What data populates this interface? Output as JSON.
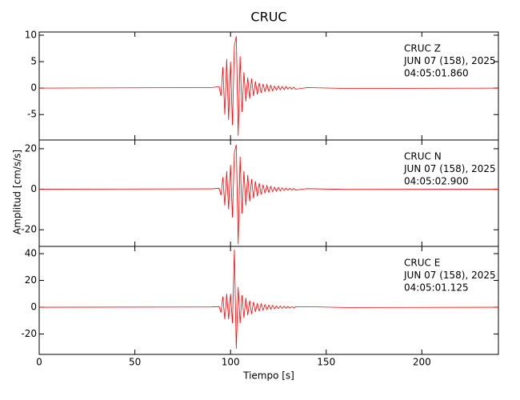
{
  "chart_data": [
    {
      "type": "line",
      "title": "CRUC",
      "annotations": [
        "CRUC   Z",
        "JUN 07 (158), 2025",
        "04:05:01.860"
      ],
      "x": [
        0,
        90,
        94,
        95,
        96,
        97,
        98,
        99,
        100,
        101,
        102,
        103,
        104,
        105,
        106,
        107,
        108,
        109,
        110,
        111,
        112,
        113,
        114,
        115,
        116,
        117,
        118,
        119,
        120,
        121,
        122,
        123,
        124,
        125,
        126,
        127,
        128,
        129,
        130,
        131,
        132,
        133,
        134,
        140,
        160,
        240
      ],
      "values": [
        0,
        0.1,
        0.3,
        -1.5,
        4,
        -5,
        5.5,
        -6,
        5,
        -7,
        8,
        9.8,
        -9,
        6,
        -4.5,
        3,
        -2.5,
        2,
        -2,
        1.8,
        -1.5,
        1.3,
        -1.2,
        1,
        -0.9,
        0.8,
        -0.7,
        0.7,
        -0.6,
        0.5,
        -0.5,
        0.4,
        -0.4,
        0.4,
        -0.3,
        0.3,
        -0.3,
        0.3,
        -0.2,
        0.2,
        -0.2,
        0.2,
        -0.2,
        0.1,
        -0.05,
        0
      ],
      "color": "#ff0000",
      "xlim": [
        0,
        240
      ],
      "xticks": [
        0,
        50,
        100,
        150,
        200
      ],
      "ylim": [
        -9.8,
        10.6
      ],
      "yticks": [
        -5,
        0,
        5,
        10
      ]
    },
    {
      "type": "line",
      "ylabel": "Amplitud [cm/s/s]",
      "annotations": [
        "CRUC   N",
        "JUN 07 (158), 2025",
        "04:05:02.900"
      ],
      "x": [
        0,
        90,
        94,
        95,
        96,
        97,
        98,
        99,
        100,
        101,
        102,
        103,
        104,
        105,
        106,
        107,
        108,
        109,
        110,
        111,
        112,
        113,
        114,
        115,
        116,
        117,
        118,
        119,
        120,
        121,
        122,
        123,
        124,
        125,
        126,
        127,
        128,
        129,
        130,
        131,
        132,
        133,
        134,
        140,
        160,
        240
      ],
      "values": [
        0,
        0.2,
        0.5,
        -3,
        6,
        -8,
        9,
        -10,
        12,
        -14,
        18,
        22,
        -27,
        16,
        -12,
        9,
        -8,
        7,
        -6,
        5,
        -4.5,
        4,
        -3.5,
        3,
        -2.5,
        2.2,
        -2,
        1.8,
        -1.6,
        1.4,
        -1.2,
        1,
        -1,
        0.9,
        -0.8,
        0.7,
        -0.6,
        0.6,
        -0.5,
        0.5,
        -0.4,
        0.4,
        -0.4,
        0.3,
        -0.1,
        0
      ],
      "color": "#ff0000",
      "xlim": [
        0,
        240
      ],
      "xticks": [
        0,
        50,
        100,
        150,
        200
      ],
      "ylim": [
        -28.2,
        24.3
      ],
      "yticks": [
        -20,
        0,
        20
      ]
    },
    {
      "type": "line",
      "xlabel": "Tiempo [s]",
      "annotations": [
        "CRUC   E",
        "JUN 07 (158), 2025",
        "04:05:01.125"
      ],
      "x": [
        0,
        90,
        94,
        95,
        96,
        97,
        98,
        99,
        100,
        101,
        102,
        103,
        104,
        105,
        106,
        107,
        108,
        109,
        110,
        111,
        112,
        113,
        114,
        115,
        116,
        117,
        118,
        119,
        120,
        121,
        122,
        123,
        124,
        125,
        126,
        127,
        128,
        129,
        130,
        131,
        132,
        133,
        134,
        140,
        160,
        240
      ],
      "values": [
        0,
        0.2,
        0.5,
        -4,
        8,
        -9,
        10,
        -9,
        10,
        -12,
        43,
        -31,
        15,
        -12,
        9,
        -8,
        7,
        -6,
        5,
        -5,
        4,
        -3.5,
        3,
        -3,
        2.5,
        -2.2,
        2,
        -1.8,
        1.6,
        -1.5,
        1.4,
        -1.2,
        1,
        -1,
        0.9,
        -0.8,
        0.8,
        -0.7,
        0.6,
        -0.6,
        0.5,
        -0.5,
        0.4,
        0.4,
        -0.2,
        0
      ],
      "color": "#ff0000",
      "xlim": [
        0,
        240
      ],
      "xticks": [
        0,
        50,
        100,
        150,
        200
      ],
      "ylim": [
        -35.2,
        45.4
      ],
      "yticks": [
        -20,
        0,
        20,
        40
      ]
    }
  ]
}
